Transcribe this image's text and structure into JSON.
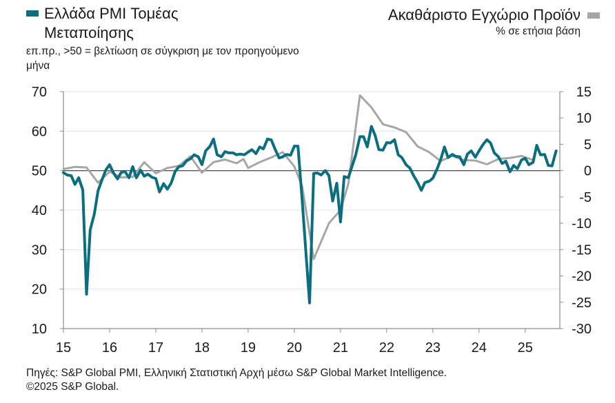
{
  "legend": {
    "left_title_line1": "Ελλάδα PMI Τομέας",
    "left_title_line2": "Μεταποίησης",
    "left_subtitle": "επ.πρ., >50 = βελτίωση σε σύγκριση με τον προηγούμενο μήνα",
    "right_title": "Ακαθάριστο Εγχώριο Προϊόν",
    "right_subtitle": "% σε ετήσια βάση"
  },
  "footer": {
    "source": "Πηγές: S&P Global PMI, Ελληνική Στατιστική Αρχή μέσω S&P Global Market Intelligence.",
    "copyright": "©2025 S&P Global."
  },
  "chart_data": {
    "type": "line",
    "xlim": [
      2015,
      2025.75
    ],
    "x_ticks": [
      15,
      16,
      17,
      18,
      19,
      20,
      21,
      22,
      23,
      24,
      25
    ],
    "y_left": {
      "lim": [
        10,
        70
      ],
      "ticks": [
        10,
        20,
        30,
        40,
        50,
        60,
        70
      ]
    },
    "y_right": {
      "lim": [
        -30,
        15
      ],
      "ticks": [
        -30,
        -25,
        -20,
        -15,
        -10,
        -5,
        0,
        5,
        10,
        15
      ]
    },
    "reference_line": {
      "axis": "left",
      "value": 50
    },
    "colors": {
      "pmi": "#0b6e7e",
      "gdp": "#a6a6a6",
      "ref": "#555555"
    },
    "series": [
      {
        "name": "Ελλάδα PMI Τομέας Μεταποίησης",
        "axis": "left",
        "points": [
          [
            2015.0,
            49.5
          ],
          [
            2015.08,
            48.9
          ],
          [
            2015.17,
            48.7
          ],
          [
            2015.25,
            46.5
          ],
          [
            2015.33,
            48.2
          ],
          [
            2015.42,
            45.1
          ],
          [
            2015.5,
            18.7
          ],
          [
            2015.58,
            35.0
          ],
          [
            2015.67,
            39.1
          ],
          [
            2015.75,
            44.9
          ],
          [
            2015.83,
            47.5
          ],
          [
            2015.92,
            50.2
          ],
          [
            2016.0,
            51.5
          ],
          [
            2016.08,
            49.5
          ],
          [
            2016.17,
            47.9
          ],
          [
            2016.25,
            49.5
          ],
          [
            2016.33,
            49.8
          ],
          [
            2016.42,
            48.2
          ],
          [
            2016.5,
            51.0
          ],
          [
            2016.58,
            48.2
          ],
          [
            2016.67,
            50.1
          ],
          [
            2016.75,
            48.6
          ],
          [
            2016.83,
            49.1
          ],
          [
            2016.92,
            48.3
          ],
          [
            2017.0,
            48.0
          ],
          [
            2017.08,
            44.6
          ],
          [
            2017.17,
            46.7
          ],
          [
            2017.25,
            45.3
          ],
          [
            2017.33,
            46.8
          ],
          [
            2017.42,
            49.8
          ],
          [
            2017.5,
            51.0
          ],
          [
            2017.58,
            51.2
          ],
          [
            2017.67,
            52.5
          ],
          [
            2017.75,
            53.0
          ],
          [
            2017.83,
            54.0
          ],
          [
            2017.92,
            53.5
          ],
          [
            2018.0,
            51.5
          ],
          [
            2018.08,
            55.0
          ],
          [
            2018.17,
            56.1
          ],
          [
            2018.25,
            58.0
          ],
          [
            2018.33,
            54.0
          ],
          [
            2018.42,
            53.5
          ],
          [
            2018.5,
            54.8
          ],
          [
            2018.58,
            54.5
          ],
          [
            2018.67,
            54.5
          ],
          [
            2018.75,
            54.0
          ],
          [
            2018.83,
            54.2
          ],
          [
            2018.92,
            54.0
          ],
          [
            2019.0,
            54.7
          ],
          [
            2019.08,
            55.3
          ],
          [
            2019.17,
            54.3
          ],
          [
            2019.25,
            56.0
          ],
          [
            2019.33,
            55.5
          ],
          [
            2019.42,
            58.0
          ],
          [
            2019.5,
            57.8
          ],
          [
            2019.58,
            55.5
          ],
          [
            2019.67,
            53.2
          ],
          [
            2019.75,
            53.5
          ],
          [
            2019.83,
            54.1
          ],
          [
            2019.92,
            53.9
          ],
          [
            2020.0,
            56.2
          ],
          [
            2020.08,
            56.2
          ],
          [
            2020.17,
            42.5
          ],
          [
            2020.25,
            29.5
          ],
          [
            2020.33,
            16.5
          ],
          [
            2020.42,
            49.3
          ],
          [
            2020.5,
            49.4
          ],
          [
            2020.58,
            48.9
          ],
          [
            2020.67,
            50.0
          ],
          [
            2020.75,
            48.7
          ],
          [
            2020.83,
            42.3
          ],
          [
            2020.92,
            46.8
          ],
          [
            2021.0,
            37.0
          ],
          [
            2021.08,
            48.5
          ],
          [
            2021.17,
            48.2
          ],
          [
            2021.25,
            51.1
          ],
          [
            2021.33,
            54.0
          ],
          [
            2021.42,
            58.6
          ],
          [
            2021.5,
            58.6
          ],
          [
            2021.58,
            56.0
          ],
          [
            2021.67,
            61.2
          ],
          [
            2021.75,
            58.9
          ],
          [
            2021.83,
            55.3
          ],
          [
            2021.92,
            55.2
          ],
          [
            2022.0,
            57.1
          ],
          [
            2022.08,
            57.0
          ],
          [
            2022.17,
            57.8
          ],
          [
            2022.25,
            54.0
          ],
          [
            2022.33,
            53.3
          ],
          [
            2022.42,
            51.5
          ],
          [
            2022.5,
            50.7
          ],
          [
            2022.58,
            48.8
          ],
          [
            2022.67,
            47.0
          ],
          [
            2022.75,
            45.0
          ],
          [
            2022.83,
            47.0
          ],
          [
            2022.92,
            47.3
          ],
          [
            2023.0,
            48.1
          ],
          [
            2023.08,
            50.1
          ],
          [
            2023.17,
            52.8
          ],
          [
            2023.25,
            56.0
          ],
          [
            2023.33,
            53.3
          ],
          [
            2023.42,
            54.1
          ],
          [
            2023.5,
            53.6
          ],
          [
            2023.58,
            53.5
          ],
          [
            2023.67,
            51.5
          ],
          [
            2023.75,
            54.2
          ],
          [
            2023.83,
            55.0
          ],
          [
            2023.92,
            53.4
          ],
          [
            2024.0,
            55.0
          ],
          [
            2024.08,
            56.5
          ],
          [
            2024.17,
            57.8
          ],
          [
            2024.25,
            57.0
          ],
          [
            2024.33,
            54.5
          ],
          [
            2024.42,
            53.5
          ],
          [
            2024.5,
            51.8
          ],
          [
            2024.58,
            52.4
          ],
          [
            2024.67,
            49.7
          ],
          [
            2024.75,
            51.3
          ],
          [
            2024.83,
            50.5
          ],
          [
            2024.92,
            52.7
          ],
          [
            2025.0,
            53.1
          ],
          [
            2025.08,
            51.5
          ],
          [
            2025.17,
            52.1
          ],
          [
            2025.25,
            56.4
          ],
          [
            2025.33,
            54.0
          ],
          [
            2025.42,
            54.1
          ],
          [
            2025.5,
            51.3
          ],
          [
            2025.58,
            51.2
          ],
          [
            2025.67,
            55.0
          ]
        ]
      },
      {
        "name": "Ακαθάριστο Εγχώριο Προϊόν",
        "axis": "right",
        "points": [
          [
            2015.0,
            0.3
          ],
          [
            2015.25,
            0.7
          ],
          [
            2015.5,
            0.6
          ],
          [
            2015.75,
            -2.3
          ],
          [
            2016.0,
            -0.2
          ],
          [
            2016.25,
            -1.3
          ],
          [
            2016.5,
            -1.2
          ],
          [
            2016.75,
            1.6
          ],
          [
            2017.0,
            -0.5
          ],
          [
            2017.25,
            0.5
          ],
          [
            2017.5,
            0.9
          ],
          [
            2017.75,
            2.7
          ],
          [
            2018.0,
            -0.4
          ],
          [
            2018.25,
            1.6
          ],
          [
            2018.5,
            2.1
          ],
          [
            2018.75,
            1.4
          ],
          [
            2018.9,
            2.2
          ],
          [
            2019.0,
            0.5
          ],
          [
            2019.25,
            1.6
          ],
          [
            2019.5,
            2.5
          ],
          [
            2019.75,
            3.5
          ],
          [
            2020.0,
            0.8
          ],
          [
            2020.17,
            -3.0
          ],
          [
            2020.42,
            -16.8
          ],
          [
            2020.75,
            -10.0
          ],
          [
            2021.0,
            -7.5
          ],
          [
            2021.17,
            -2.5
          ],
          [
            2021.42,
            14.3
          ],
          [
            2021.67,
            12.0
          ],
          [
            2021.92,
            8.8
          ],
          [
            2022.17,
            8.2
          ],
          [
            2022.42,
            7.3
          ],
          [
            2022.67,
            4.6
          ],
          [
            2022.92,
            3.5
          ],
          [
            2023.17,
            1.8
          ],
          [
            2023.42,
            2.8
          ],
          [
            2023.67,
            2.0
          ],
          [
            2023.92,
            1.9
          ],
          [
            2024.17,
            1.2
          ],
          [
            2024.42,
            2.2
          ],
          [
            2024.67,
            2.4
          ],
          [
            2024.92,
            2.8
          ],
          [
            2025.17,
            2.0
          ]
        ]
      }
    ]
  }
}
